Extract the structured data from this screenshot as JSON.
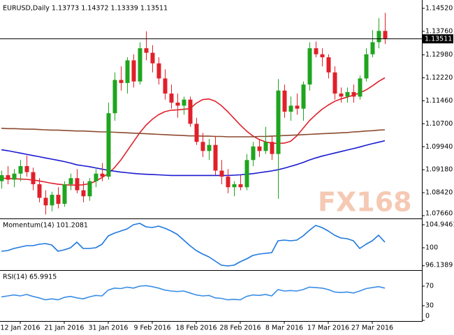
{
  "chart_data": [
    {
      "type": "candlestick",
      "title": "EURUSD,Daily  1.13773 1.14372 1.13339 1.13511",
      "watermark": "FX168",
      "categories": [
        null,
        null,
        null,
        "12 Jan 2016",
        null,
        null,
        null,
        null,
        null,
        null,
        "21 Jan 2016",
        null,
        null,
        null,
        null,
        null,
        null,
        "31 Jan 2016",
        null,
        null,
        null,
        null,
        null,
        null,
        "9 Feb 2016",
        null,
        null,
        null,
        null,
        null,
        null,
        "18 Feb 2016",
        null,
        null,
        null,
        null,
        null,
        null,
        "28 Feb 2016",
        null,
        null,
        null,
        null,
        null,
        null,
        "8 Mar 2016",
        null,
        null,
        null,
        null,
        null,
        null,
        "17 Mar 2016",
        null,
        null,
        null,
        null,
        null,
        null,
        "27 Mar 2016",
        null,
        null
      ],
      "open": [
        1.088,
        1.09,
        1.0885,
        1.0905,
        1.093,
        1.091,
        1.087,
        1.0825,
        1.08,
        1.0835,
        1.0805,
        1.087,
        1.089,
        1.085,
        1.083,
        1.088,
        1.0905,
        1.0895,
        1.1105,
        1.1215,
        1.1205,
        1.128,
        1.121,
        1.132,
        1.1305,
        1.127,
        1.122,
        1.117,
        1.114,
        1.113,
        1.115,
        1.107,
        1.101,
        1.098,
        1.1,
        1.0915,
        1.0895,
        1.086,
        1.087,
        1.086,
        1.095,
        1.0995,
        1.098,
        1.101,
        1.097,
        1.118,
        1.111,
        1.113,
        1.112,
        1.12,
        1.132,
        1.13,
        1.129,
        1.124,
        1.117,
        1.116,
        1.1175,
        1.116,
        1.122,
        1.13,
        1.134,
        1.13773
      ],
      "high": [
        1.0915,
        1.093,
        1.092,
        1.095,
        1.0965,
        1.0925,
        1.089,
        1.085,
        1.0845,
        1.086,
        1.088,
        1.0905,
        1.092,
        1.088,
        1.089,
        1.092,
        1.094,
        1.114,
        1.124,
        1.126,
        1.129,
        1.13,
        1.134,
        1.1376,
        1.133,
        1.129,
        1.125,
        1.12,
        1.117,
        1.116,
        1.116,
        1.109,
        1.104,
        1.102,
        1.103,
        1.095,
        1.092,
        1.088,
        1.09,
        1.097,
        1.101,
        1.102,
        1.106,
        1.103,
        1.1218,
        1.12,
        1.116,
        1.117,
        1.121,
        1.134,
        1.1342,
        1.132,
        1.13,
        1.126,
        1.119,
        1.119,
        1.12,
        1.123,
        1.132,
        1.138,
        1.142,
        1.14372
      ],
      "low": [
        1.0855,
        1.087,
        1.086,
        1.088,
        1.0895,
        1.085,
        1.081,
        1.077,
        1.078,
        1.079,
        1.0795,
        1.085,
        1.084,
        1.081,
        1.0815,
        1.086,
        1.088,
        1.0885,
        1.108,
        1.118,
        1.117,
        1.119,
        1.12,
        1.128,
        1.124,
        1.12,
        1.115,
        1.112,
        1.109,
        1.11,
        1.106,
        1.1,
        1.096,
        1.095,
        1.09,
        1.087,
        1.084,
        1.083,
        1.085,
        1.085,
        1.093,
        1.096,
        1.097,
        1.095,
        1.0822,
        1.109,
        1.108,
        1.11,
        1.108,
        1.118,
        1.129,
        1.126,
        1.122,
        1.115,
        1.114,
        1.114,
        1.114,
        1.115,
        1.121,
        1.129,
        1.132,
        1.13339
      ],
      "close": [
        1.09,
        1.0885,
        1.0905,
        1.093,
        1.091,
        1.087,
        1.0825,
        1.08,
        1.0835,
        1.0805,
        1.087,
        1.089,
        1.085,
        1.083,
        1.088,
        1.0905,
        1.0895,
        1.1105,
        1.1215,
        1.1205,
        1.128,
        1.121,
        1.132,
        1.1305,
        1.127,
        1.122,
        1.117,
        1.114,
        1.113,
        1.115,
        1.107,
        1.101,
        1.098,
        1.1,
        1.0915,
        1.0895,
        1.086,
        1.087,
        1.086,
        1.095,
        1.0995,
        1.098,
        1.101,
        1.097,
        1.118,
        1.111,
        1.113,
        1.112,
        1.12,
        1.132,
        1.13,
        1.129,
        1.124,
        1.117,
        1.116,
        1.1175,
        1.116,
        1.122,
        1.13,
        1.134,
        1.13773,
        1.13511
      ],
      "up_color": "#1fa51f",
      "down_color": "#e0202a",
      "lines": [
        {
          "color": "#e0202a",
          "values": [
            1.089,
            1.0889,
            1.0888,
            1.0887,
            1.0886,
            1.0884,
            1.0881,
            1.0877,
            1.0873,
            1.087,
            1.0868,
            1.0867,
            1.0867,
            1.0868,
            1.0872,
            1.088,
            1.0892,
            1.0905,
            1.0925,
            1.095,
            1.098,
            1.101,
            1.104,
            1.1065,
            1.1085,
            1.11,
            1.111,
            1.1115,
            1.1116,
            1.1118,
            1.112,
            1.1138,
            1.115,
            1.1152,
            1.1145,
            1.113,
            1.111,
            1.1088,
            1.1066,
            1.1046,
            1.103,
            1.1018,
            1.101,
            1.1006,
            1.1005,
            1.1006,
            1.1012,
            1.103,
            1.1055,
            1.108,
            1.11,
            1.1118,
            1.1132,
            1.1144,
            1.1152,
            1.1158,
            1.1165,
            1.1172,
            1.1182,
            1.1195,
            1.121,
            1.1222
          ]
        },
        {
          "color": "#8c4a2f",
          "values": [
            1.1055,
            1.1054,
            1.1054,
            1.1053,
            1.1052,
            1.1052,
            1.1051,
            1.105,
            1.1049,
            1.1049,
            1.1048,
            1.1047,
            1.1046,
            1.1046,
            1.1045,
            1.1044,
            1.1043,
            1.1043,
            1.1042,
            1.1041,
            1.104,
            1.1039,
            1.1038,
            1.1037,
            1.1036,
            1.1035,
            1.1034,
            1.1033,
            1.1032,
            1.1031,
            1.103,
            1.103,
            1.1029,
            1.1029,
            1.1028,
            1.1028,
            1.1027,
            1.1027,
            1.1027,
            1.1027,
            1.1027,
            1.1028,
            1.1028,
            1.1029,
            1.103,
            1.1031,
            1.1032,
            1.1033,
            1.1034,
            1.1035,
            1.1036,
            1.1037,
            1.1038,
            1.1039,
            1.104,
            1.1041,
            1.1043,
            1.1044,
            1.1046,
            1.1047,
            1.1049,
            1.105
          ]
        },
        {
          "color": "#1a1ad0",
          "values": [
            1.0984,
            1.0981,
            1.0977,
            1.0973,
            1.0969,
            1.0965,
            1.0961,
            1.0957,
            1.0953,
            1.0949,
            1.0945,
            1.094,
            1.0934,
            1.0931,
            1.0928,
            1.0924,
            1.092,
            1.0916,
            1.0913,
            1.091,
            1.0908,
            1.0906,
            1.0904,
            1.0903,
            1.0902,
            1.0901,
            1.09,
            1.0899,
            1.0899,
            1.0899,
            1.0899,
            1.0899,
            1.0899,
            1.0899,
            1.0899,
            1.0899,
            1.0899,
            1.09,
            1.0901,
            1.0903,
            1.0905,
            1.0908,
            1.0911,
            1.0914,
            1.0918,
            1.0923,
            1.0929,
            1.0935,
            1.0942,
            1.095,
            1.0957,
            1.0963,
            1.0968,
            1.0973,
            1.0978,
            1.0983,
            1.0988,
            1.0993,
            1.0999,
            1.1004,
            1.1009,
            1.1014
          ]
        }
      ],
      "current_price": 1.13511,
      "ylim": [
        1.0759,
        1.1475
      ],
      "yticks": [
        {
          "value": 1.1452,
          "label": "1.14520"
        },
        {
          "value": 1.1376,
          "label": "1.13760"
        },
        {
          "value": 1.1298,
          "label": "1.12980"
        },
        {
          "value": 1.1222,
          "label": "1.12220"
        },
        {
          "value": 1.1146,
          "label": "1.11460"
        },
        {
          "value": 1.107,
          "label": "1.10700"
        },
        {
          "value": 1.0994,
          "label": "1.09940"
        },
        {
          "value": 1.0918,
          "label": "1.09180"
        },
        {
          "value": 1.0842,
          "label": "1.08420"
        },
        {
          "value": 1.0766,
          "label": "1.07660"
        }
      ]
    },
    {
      "type": "line",
      "title": "Momentum(14) 101.2081",
      "color": "#1e78e0",
      "values": [
        99.25,
        99.4,
        99.85,
        100.15,
        100.45,
        100.45,
        100.75,
        100.9,
        100.6,
        99.25,
        99.55,
        100,
        101.2,
        99.85,
        99.85,
        100,
        100.75,
        102.55,
        103.15,
        103.6,
        104.05,
        104.95,
        105.25,
        104.5,
        104.35,
        104.65,
        104.2,
        103.6,
        102.85,
        101.65,
        100.45,
        99.4,
        98.65,
        98.05,
        97.15,
        96.25,
        96.1,
        96.25,
        97.0,
        97.6,
        98.35,
        98.65,
        98.8,
        98.95,
        101.5,
        101.65,
        101.5,
        101.65,
        102.55,
        103.75,
        104.8,
        104.35,
        103.6,
        102.7,
        102.1,
        101.95,
        101.5,
        99.85,
        100.75,
        101.5,
        102.7,
        101.2081
      ],
      "ylim": [
        95.35,
        105.85
      ],
      "yticks": [
        104.9461,
        100,
        96.1389
      ]
    },
    {
      "type": "line",
      "title": "RSI(14) 65.9915",
      "color": "#3a8ee6",
      "values": [
        48,
        50,
        52,
        50,
        53,
        49,
        46,
        42,
        44,
        42,
        47,
        49,
        46,
        44,
        48,
        51,
        50,
        62,
        66,
        65,
        68,
        66,
        70,
        71,
        69,
        66,
        62,
        60,
        59,
        60,
        56,
        52,
        50,
        51,
        46,
        45,
        42,
        43,
        42,
        49,
        52,
        51,
        53,
        50,
        63,
        60,
        61,
        60,
        63,
        68,
        67,
        66,
        63,
        58,
        57,
        58,
        56,
        60,
        65,
        67,
        69,
        65.9915
      ],
      "ylim": [
        0,
        100
      ],
      "yticks": [
        70,
        30,
        0
      ]
    }
  ]
}
